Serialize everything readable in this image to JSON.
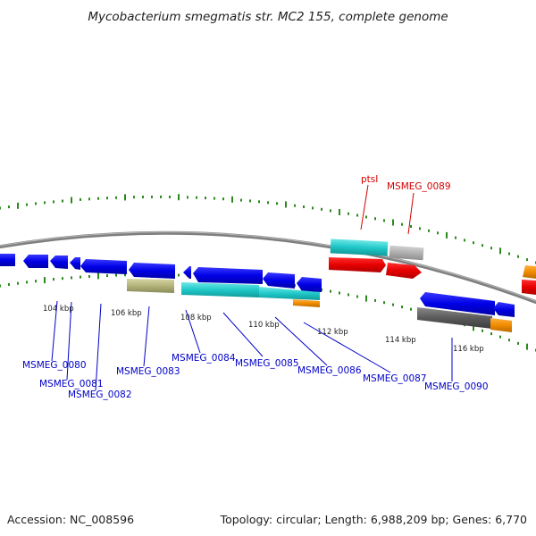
{
  "title": "Mycobacterium smegmatis str. MC2 155, complete genome",
  "footer": {
    "accession": "Accession: NC_008596",
    "topology": "Topology: circular; Length: 6,988,209 bp; Genes: 6,770"
  },
  "scale_labels": [
    "104 kbp",
    "106 kbp",
    "108 kbp",
    "110 kbp",
    "112 kbp",
    "114 kbp",
    "116 kbp"
  ],
  "gene_labels": [
    {
      "text": "ptsI",
      "color": "#d40000"
    },
    {
      "text": "MSMEG_0089",
      "color": "#d40000"
    },
    {
      "text": "MSMEG_0080",
      "color": "#0000c8"
    },
    {
      "text": "MSMEG_0081",
      "color": "#0000c8"
    },
    {
      "text": "MSMEG_0082",
      "color": "#0000c8"
    },
    {
      "text": "MSMEG_0083",
      "color": "#0000c8"
    },
    {
      "text": "MSMEG_0084",
      "color": "#0000c8"
    },
    {
      "text": "MSMEG_0085",
      "color": "#0000c8"
    },
    {
      "text": "MSMEG_0086",
      "color": "#0000c8"
    },
    {
      "text": "MSMEG_0087",
      "color": "#0000c8"
    },
    {
      "text": "MSMEG_0090",
      "color": "#0000c8"
    }
  ],
  "colors": {
    "cds": "#0000e6",
    "highlight_cds": "#e60000",
    "rna": "#1fc8c8",
    "pseudogene": "#b3b37a",
    "gray_feature": "#a0a0a0",
    "misc_feature": "#f08c00",
    "backbone": "#7f7f7f",
    "tick": "#2a8a1a"
  }
}
